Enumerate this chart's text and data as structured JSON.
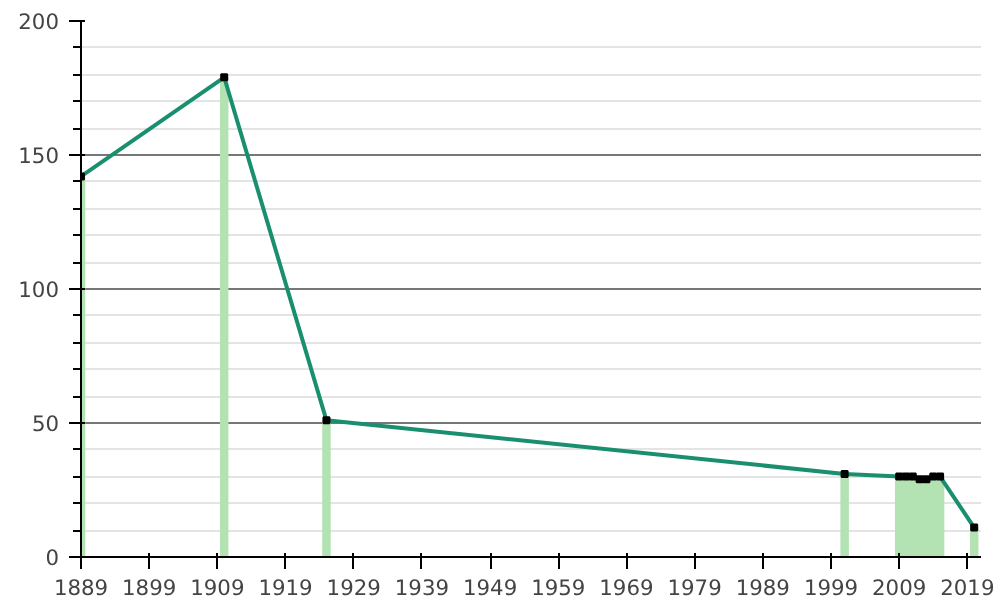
{
  "chart_data": {
    "type": "line",
    "x": [
      1889,
      1910,
      1925,
      2001,
      2009,
      2010,
      2011,
      2012,
      2013,
      2014,
      2015,
      2020
    ],
    "series": [
      {
        "type": "bar",
        "color": "#b3e2b3",
        "values": [
          142,
          179,
          51,
          31,
          30,
          30,
          30,
          29,
          29,
          30,
          30,
          11
        ]
      },
      {
        "color": "#1a8f6f",
        "marker": "square",
        "values": [
          142,
          179,
          51,
          31,
          30,
          30,
          30,
          29,
          29,
          30,
          30,
          11
        ]
      }
    ],
    "xlim": [
      1889,
      2021
    ],
    "xticks": [
      1889,
      1899,
      1909,
      1919,
      1929,
      1939,
      1949,
      1959,
      1969,
      1979,
      1989,
      1999,
      2009,
      2019
    ],
    "ylim": [
      0,
      200
    ],
    "yticks": [
      0,
      50,
      100,
      150,
      200
    ],
    "grid": "y"
  }
}
